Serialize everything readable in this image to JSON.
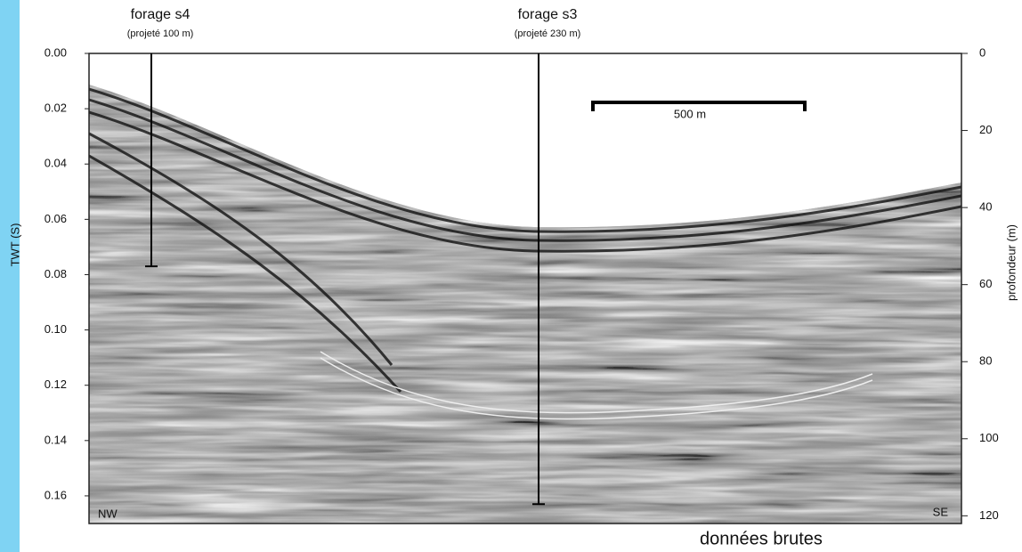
{
  "chart_data": {
    "type": "seismic",
    "ylabel": "TWT (S)",
    "y2label": "profondeur (m)",
    "ylim": [
      0,
      0.17
    ],
    "yticks": [
      {
        "value": 0,
        "label": "0.00"
      },
      {
        "value": 0.02,
        "label": "0.02"
      },
      {
        "value": 0.04,
        "label": "0.04"
      },
      {
        "value": 0.06,
        "label": "0.06"
      },
      {
        "value": 0.08,
        "label": "0.08"
      },
      {
        "value": 0.1,
        "label": "0.10"
      },
      {
        "value": 0.12,
        "label": "0.12"
      },
      {
        "value": 0.14,
        "label": "0.14"
      },
      {
        "value": 0.16,
        "label": "0.16"
      }
    ],
    "y2lim": [
      0,
      122
    ],
    "y2ticks": [
      0,
      20,
      40,
      60,
      80,
      100,
      120
    ],
    "boreholes": [
      {
        "name": "forage s4",
        "note": "(projeté 100 m)",
        "depth": 0.077
      },
      {
        "name": "forage s3",
        "note": "(projeté 230 m)",
        "depth": 0.163
      }
    ],
    "scale_bar": "500 m",
    "left_label": "NW",
    "right_label": "SE",
    "caption": "données brutes"
  }
}
